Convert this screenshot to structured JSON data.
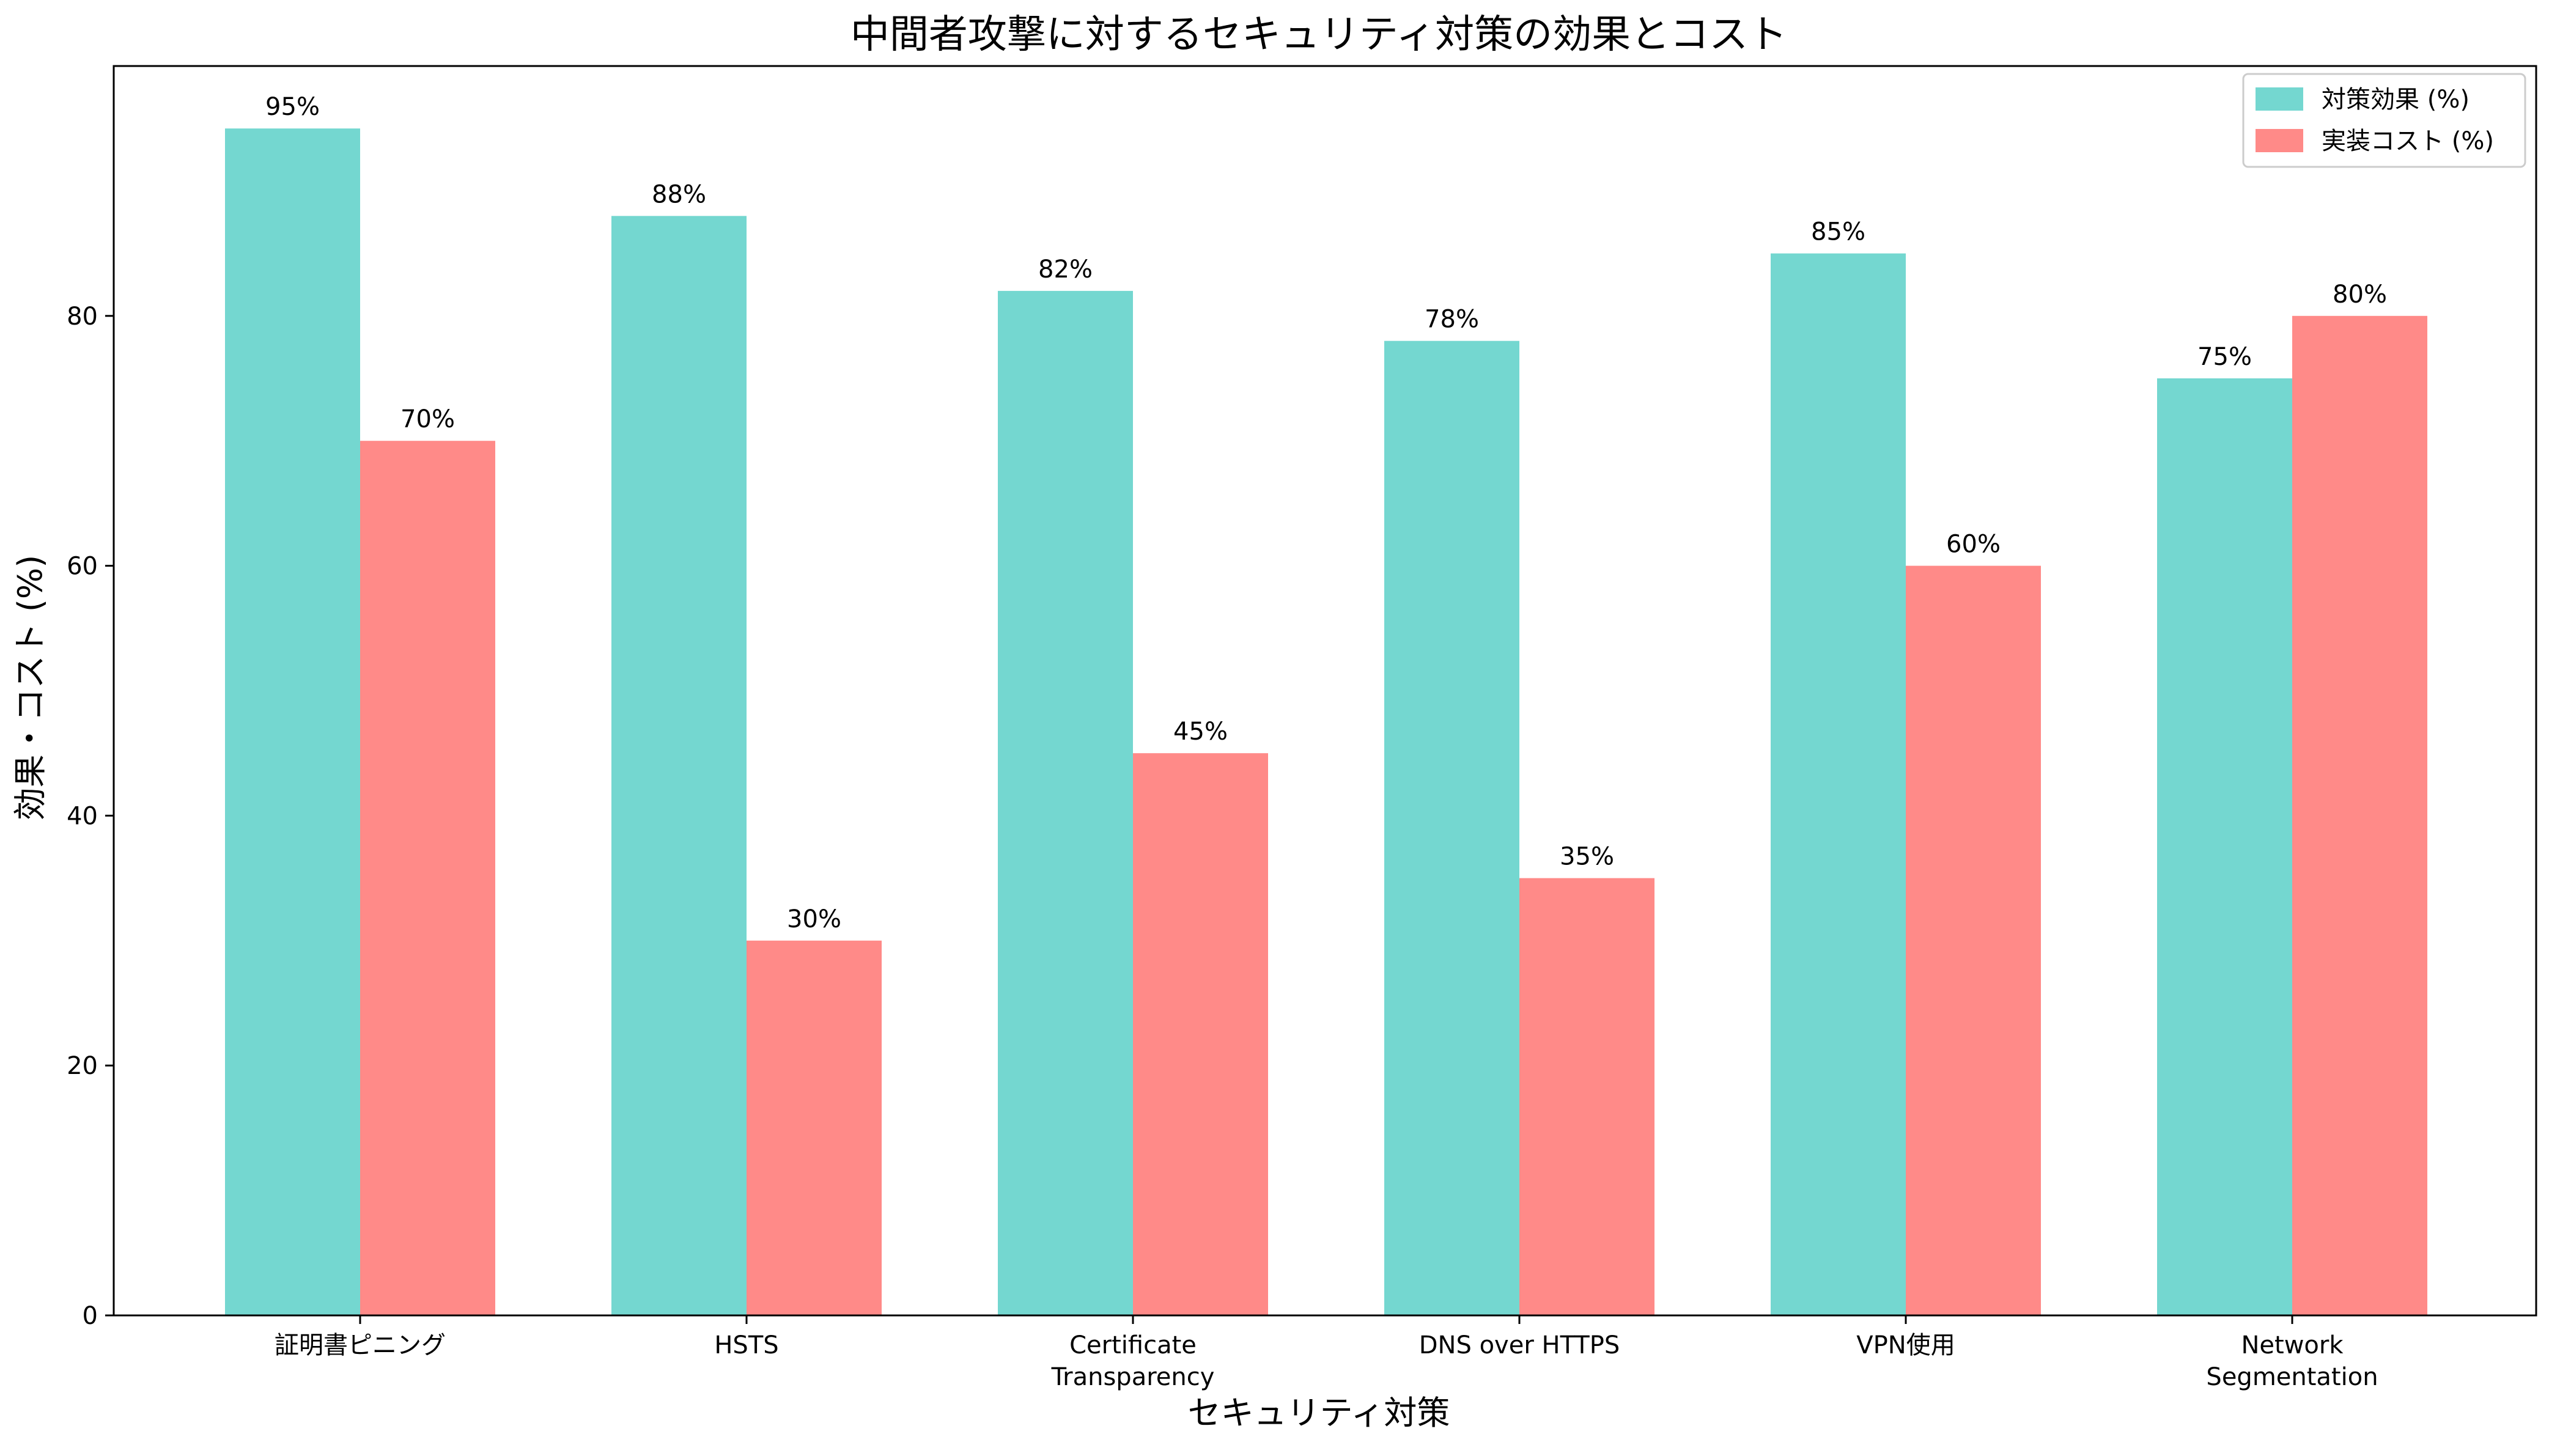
{
  "chart_data": {
    "type": "bar",
    "title": "中間者攻撃に対するセキュリティ対策の効果とコスト",
    "xlabel": "セキュリティ対策",
    "ylabel": "効果・コスト (%)",
    "categories": [
      [
        "証明書ピニング"
      ],
      [
        "HSTS"
      ],
      [
        "Certificate",
        "Transparency"
      ],
      [
        "DNS over HTTPS"
      ],
      [
        "VPN使用"
      ],
      [
        "Network",
        "Segmentation"
      ]
    ],
    "series": [
      {
        "name": "対策効果 (%)",
        "color": "#74d7d0",
        "values": [
          95,
          88,
          82,
          78,
          85,
          75
        ]
      },
      {
        "name": "実装コスト (%)",
        "color": "#ff8a88",
        "values": [
          70,
          30,
          45,
          35,
          60,
          80
        ]
      }
    ],
    "data_label_suffix": "%",
    "yticks": [
      0,
      20,
      40,
      60,
      80
    ],
    "ylim": [
      0,
      100
    ],
    "legend_position": "top-right",
    "grid": false
  }
}
